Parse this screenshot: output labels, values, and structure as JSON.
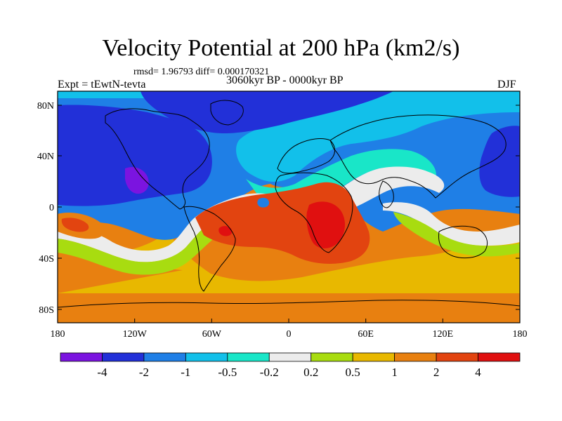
{
  "title": "Velocity Potential at 200 hPa (km2/s)",
  "stats": "rmsd= 1.96793 diff= 0.000170321",
  "period": "3060kyr BP - 0000kyr BP",
  "experiment": "Expt = tEwtN-tevta",
  "season": "DJF",
  "axes": {
    "lat_ticks": [
      "80N",
      "40N",
      "0",
      "40S",
      "80S"
    ],
    "lon_ticks": [
      "180",
      "120W",
      "60W",
      "0",
      "60E",
      "120E",
      "180"
    ]
  },
  "colorbar": {
    "labels": [
      "-4",
      "-2",
      "-1",
      "-0.5",
      "-0.2",
      "0.2",
      "0.5",
      "1",
      "2",
      "4"
    ],
    "colors": [
      "#7b14e0",
      "#2230d8",
      "#1f7fe6",
      "#12c0ea",
      "#19e6c8",
      "#ececec",
      "#a8dc10",
      "#e8b800",
      "#e88010",
      "#e24410",
      "#e01010"
    ]
  },
  "map_colors": {
    "neg_strong": "#7b14e0",
    "neg2": "#2230d8",
    "neg1": "#1f7fe6",
    "neg05": "#12c0ea",
    "neg02": "#19e6c8",
    "near_zero": "#ececec",
    "pos02": "#a8dc10",
    "pos05": "#e8b800",
    "pos1": "#e88010",
    "pos2": "#e24410",
    "pos4": "#e01010"
  }
}
